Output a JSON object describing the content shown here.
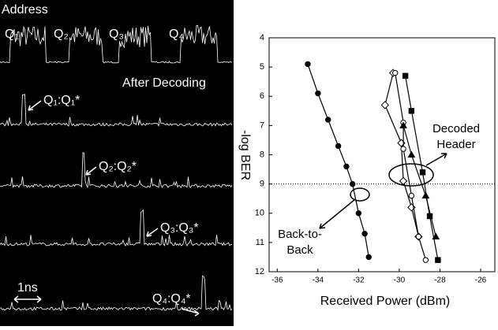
{
  "scope": {
    "title": "Address",
    "slots": [
      "Q₁",
      "Q₂",
      "Q₃",
      "Q₄"
    ],
    "subtitle": "After Decoding",
    "peaks": [
      "Q₁:Q₁*",
      "Q₂:Q₂*",
      "Q₃:Q₃*",
      "Q₄:Q₄*"
    ],
    "scale": "1ns"
  },
  "chart_data": {
    "type": "scatter",
    "x_label": "Received Power (dBm)",
    "y_label": "-log BER",
    "xlim": [
      -36.4,
      -25.3
    ],
    "xticks": [
      -36,
      -34,
      -32,
      -30,
      -28,
      -26
    ],
    "ylim": [
      4,
      12
    ],
    "yticks": [
      4,
      5,
      6,
      7,
      8,
      9,
      10,
      11,
      12
    ],
    "y_inverted": true,
    "reference_line": 9,
    "annotations": [
      {
        "lines": [
          "Decoded",
          "Header"
        ]
      },
      {
        "lines": [
          "Back-to-",
          "Back"
        ]
      }
    ],
    "series": [
      {
        "marker": "circle-filled",
        "color": "#000",
        "x": [
          -34.5,
          -34,
          -33.5,
          -33,
          -32.6,
          -32.3,
          -32,
          -31.7,
          -31.5
        ],
        "values": [
          4.9,
          5.9,
          6.8,
          7.7,
          8.4,
          9.0,
          10.0,
          10.7,
          11.5
        ]
      },
      {
        "marker": "diamond-open",
        "color": "#000",
        "x": [
          -30.3,
          -30.7,
          -29.9,
          -29.8,
          -29.4,
          -29.05
        ],
        "values": [
          5.2,
          6.3,
          7.6,
          8.9,
          9.8,
          10.8
        ]
      },
      {
        "marker": "circle-open",
        "color": "#000",
        "x": [
          -30.2,
          -29.8,
          -29.8,
          -29.4,
          -29.05,
          -28.7
        ],
        "values": [
          5.2,
          6.9,
          7.8,
          9.4,
          10.8,
          11.6
        ]
      },
      {
        "marker": "square-filled",
        "color": "#000",
        "x": [
          -29.7,
          -29.4,
          -28.85,
          -28.5,
          -28.1
        ],
        "values": [
          5.3,
          6.5,
          8.6,
          10.1,
          11.6
        ]
      },
      {
        "marker": "triangle-filled",
        "color": "#000",
        "x": [
          -29.8,
          -29.4,
          -28.7,
          -28.2
        ],
        "values": [
          7.0,
          8.0,
          9.4,
          10.8
        ]
      }
    ]
  }
}
